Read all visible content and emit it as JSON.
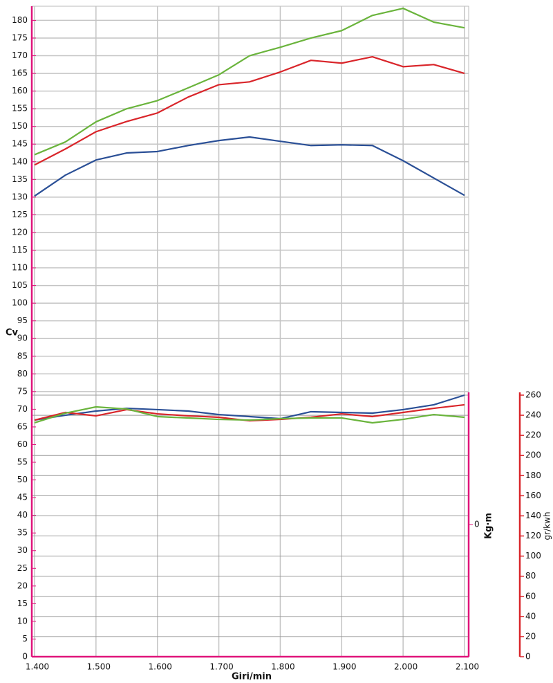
{
  "chart_data": {
    "type": "line",
    "x_label": "Giri/min",
    "y_label": "Cv",
    "y2_label": "gr/kwh",
    "y3_label": "Kg·m",
    "x": [
      1400,
      1450,
      1500,
      1550,
      1600,
      1650,
      1700,
      1750,
      1800,
      1850,
      1900,
      1950,
      2000,
      2050,
      2100
    ],
    "xlim": [
      1400,
      2100
    ],
    "xticks": [
      {
        "value": 1400,
        "label": "1.400"
      },
      {
        "value": 1500,
        "label": "1.500"
      },
      {
        "value": 1600,
        "label": "1.600"
      },
      {
        "value": 1700,
        "label": "1.700"
      },
      {
        "value": 1800,
        "label": "1.800"
      },
      {
        "value": 1900,
        "label": "1.900"
      },
      {
        "value": 2000,
        "label": "2.000"
      },
      {
        "value": 2100,
        "label": "2.100"
      }
    ],
    "ylim": [
      0,
      184
    ],
    "yticks": [
      0,
      5,
      10,
      15,
      20,
      25,
      30,
      35,
      40,
      45,
      50,
      55,
      60,
      65,
      70,
      75,
      80,
      85,
      90,
      95,
      100,
      105,
      110,
      115,
      120,
      125,
      130,
      135,
      140,
      145,
      150,
      155,
      160,
      165,
      170,
      175,
      180
    ],
    "y2lim": [
      0,
      260
    ],
    "y2ticks": [
      0,
      20,
      40,
      60,
      80,
      100,
      120,
      140,
      160,
      180,
      200,
      220,
      240,
      260
    ],
    "y3lim": [
      -1,
      1
    ],
    "y3ticks": [
      0
    ],
    "grid": true,
    "series": [
      {
        "color": "#6ab43c",
        "values": [
          142,
          145.6,
          151.3,
          155,
          157.3,
          160.9,
          164.6,
          170,
          172.4,
          175,
          177.1,
          181.4,
          183.4,
          179.5,
          177.9
        ]
      },
      {
        "color": "#d9252a",
        "values": [
          139.1,
          143.6,
          148.5,
          151.4,
          153.8,
          158.3,
          161.8,
          162.6,
          165.4,
          168.7,
          167.9,
          169.7,
          166.9,
          167.5,
          165
        ]
      },
      {
        "color": "#2a4f96",
        "values": [
          130.3,
          136.2,
          140.5,
          142.5,
          142.9,
          144.6,
          146,
          147,
          145.8,
          144.6,
          144.8,
          144.6,
          140.3,
          135.4,
          130.5
        ]
      },
      {
        "color": "#2a4f96",
        "axis": "y2",
        "values": [
          235.2,
          240,
          244.2,
          246.9,
          245.6,
          244.2,
          240.7,
          238.7,
          236.6,
          243.5,
          242.8,
          242.1,
          245.6,
          250.4,
          260
        ]
      },
      {
        "color": "#d9252a",
        "axis": "y2",
        "values": [
          235.2,
          242.8,
          239.4,
          245.6,
          241.4,
          239.4,
          238,
          234.5,
          235.9,
          238,
          241.4,
          238.7,
          242.8,
          246.9,
          250.4
        ]
      },
      {
        "color": "#6ab43c",
        "axis": "y2",
        "values": [
          232.5,
          242.1,
          248.3,
          246.2,
          238.7,
          237.3,
          235.9,
          235.2,
          236.6,
          237.3,
          237.3,
          232.5,
          235.9,
          240.7,
          238
        ]
      }
    ]
  }
}
